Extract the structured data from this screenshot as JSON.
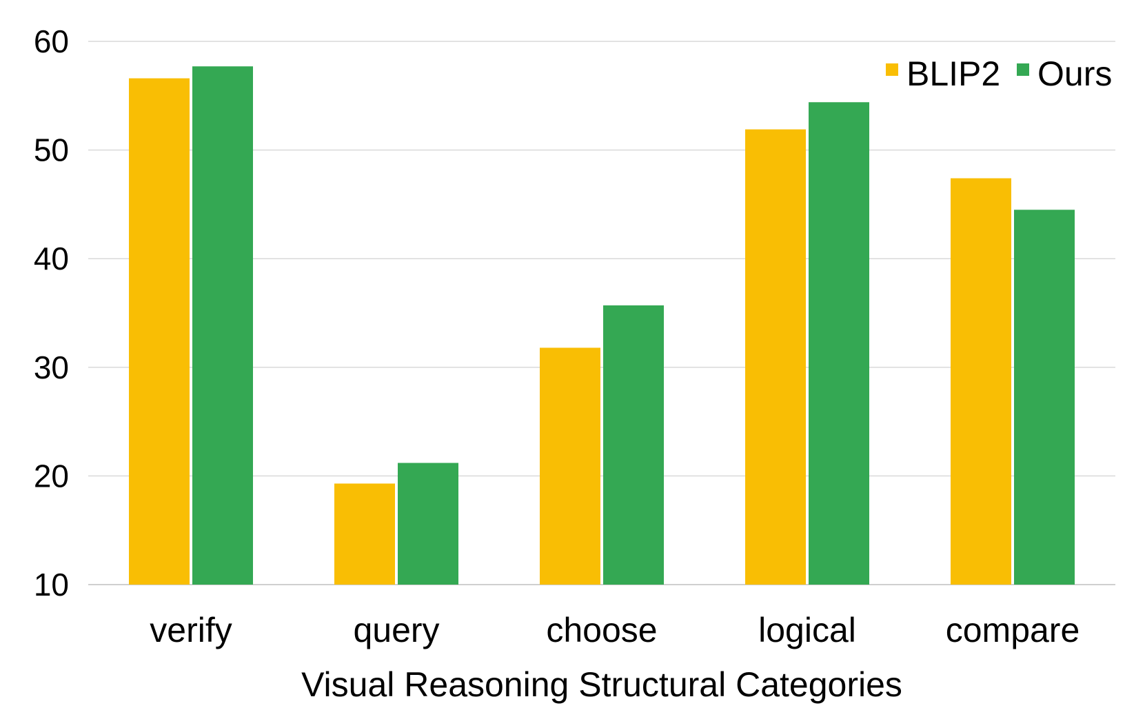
{
  "chart_data": {
    "type": "bar",
    "title": "",
    "xlabel": "Visual Reasoning Structural Categories",
    "ylabel": "",
    "categories": [
      "verify",
      "query",
      "choose",
      "logical",
      "compare"
    ],
    "series": [
      {
        "name": "BLIP2",
        "color": "#F9BE04",
        "values": [
          56.6,
          19.3,
          31.8,
          51.9,
          47.4
        ]
      },
      {
        "name": "Ours",
        "color": "#34A853",
        "values": [
          57.7,
          21.2,
          35.7,
          54.4,
          44.5
        ]
      }
    ],
    "ylim": [
      10,
      60
    ],
    "yticks": [
      10,
      20,
      30,
      40,
      50,
      60
    ],
    "grid": true,
    "legend_position": "top-right"
  }
}
